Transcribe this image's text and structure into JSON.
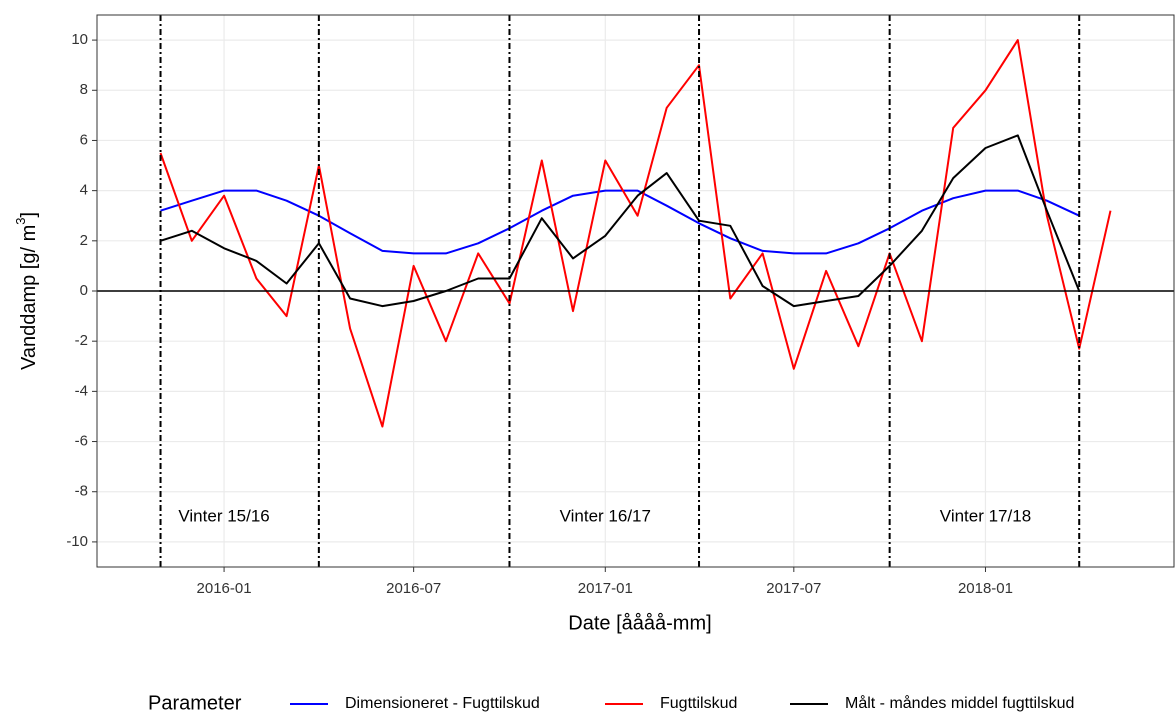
{
  "chart_data": {
    "type": "line",
    "x_label": "Date [åååå-mm]",
    "y_label": "Vanddamp [g/ m",
    "y_label_sup": "3",
    "y_label_end": "]",
    "x": [
      "2015-11",
      "2015-12",
      "2016-01",
      "2016-02",
      "2016-03",
      "2016-04",
      "2016-05",
      "2016-06",
      "2016-07",
      "2016-08",
      "2016-09",
      "2016-10",
      "2016-11",
      "2016-12",
      "2017-01",
      "2017-02",
      "2017-03",
      "2017-04",
      "2017-05",
      "2017-06",
      "2017-07",
      "2017-08",
      "2017-09",
      "2017-10",
      "2017-11",
      "2017-12",
      "2018-01",
      "2018-02",
      "2018-03",
      "2018-04",
      "2018-05"
    ],
    "series": [
      {
        "name": "Dimensioneret - Fugttilskud",
        "color": "#0000ff",
        "values": [
          3.2,
          3.6,
          4.0,
          4.0,
          3.6,
          3.0,
          2.3,
          1.6,
          1.5,
          1.5,
          1.9,
          2.5,
          3.2,
          3.8,
          4.0,
          4.0,
          3.4,
          2.7,
          2.1,
          1.6,
          1.5,
          1.5,
          1.9,
          2.5,
          3.2,
          3.7,
          4.0,
          4.0,
          3.6,
          3.0,
          null
        ]
      },
      {
        "name": "Fugttilskud",
        "color": "#ff0000",
        "values": [
          5.5,
          2.0,
          3.8,
          0.5,
          -1.0,
          5.0,
          -1.5,
          -5.4,
          1.0,
          -2.0,
          1.5,
          -0.5,
          5.2,
          -0.8,
          5.2,
          3.0,
          7.3,
          9.0,
          -0.3,
          1.5,
          -3.1,
          0.8,
          -2.2,
          1.5,
          -2.0,
          6.5,
          8.0,
          10.0,
          3.0,
          -2.3,
          3.2
        ]
      },
      {
        "name": "Målt - måndes middel fugttilskud",
        "color": "#000000",
        "values": [
          2.0,
          2.4,
          1.7,
          1.2,
          0.3,
          1.9,
          -0.3,
          -0.6,
          -0.4,
          0.0,
          0.5,
          0.5,
          2.9,
          1.3,
          2.2,
          3.8,
          4.7,
          2.8,
          2.6,
          0.2,
          -0.6,
          -0.4,
          -0.2,
          1.0,
          2.4,
          4.5,
          5.7,
          6.2,
          3.2,
          0.0,
          null
        ]
      }
    ],
    "xlim": [
      "2015-09",
      "2018-07"
    ],
    "xticks": [
      "2016-01",
      "2016-07",
      "2017-01",
      "2017-07",
      "2018-01"
    ],
    "ylim": [
      -11,
      11
    ],
    "yticks": [
      -10,
      -8,
      -6,
      -4,
      -2,
      0,
      2,
      4,
      6,
      8,
      10
    ],
    "hlines": [
      0
    ],
    "vlines": [
      "2015-11",
      "2016-04",
      "2016-10",
      "2017-04",
      "2017-10",
      "2018-04"
    ],
    "annotations": [
      {
        "text": "Vinter 15/16",
        "x": "2016-01",
        "y": -9
      },
      {
        "text": "Vinter 16/17",
        "x": "2017-01",
        "y": -9
      },
      {
        "text": "Vinter 17/18",
        "x": "2018-01",
        "y": -9
      }
    ],
    "legend_title": "Parameter",
    "legend_position": "bottom",
    "grid": true
  }
}
